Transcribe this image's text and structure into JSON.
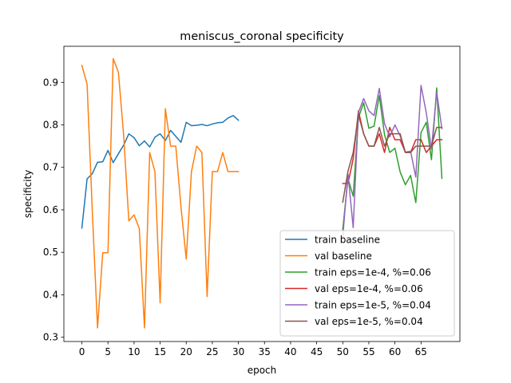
{
  "chart_data": {
    "type": "line",
    "title": "meniscus_coronal specificity",
    "xlabel": "epoch",
    "ylabel": "specificity",
    "xlim": [
      -3.45,
      72.45
    ],
    "ylim": [
      0.29,
      0.985
    ],
    "xticks": [
      0,
      5,
      10,
      15,
      20,
      25,
      30,
      35,
      40,
      45,
      50,
      55,
      60,
      65
    ],
    "yticks": [
      0.3,
      0.4,
      0.5,
      0.6,
      0.7,
      0.8,
      0.9
    ],
    "grid": false,
    "legend_position": "lower-right",
    "series": [
      {
        "name": "train baseline",
        "color": "#1f77b4",
        "x": [
          0,
          1,
          2,
          3,
          4,
          5,
          6,
          7,
          8,
          9,
          10,
          11,
          12,
          13,
          14,
          15,
          16,
          17,
          18,
          19,
          20,
          21,
          22,
          23,
          24,
          25,
          26,
          27,
          28,
          29,
          30
        ],
        "y": [
          0.557,
          0.673,
          0.685,
          0.712,
          0.713,
          0.74,
          0.711,
          0.732,
          0.752,
          0.779,
          0.77,
          0.751,
          0.762,
          0.748,
          0.771,
          0.779,
          0.763,
          0.787,
          0.773,
          0.759,
          0.806,
          0.798,
          0.799,
          0.801,
          0.798,
          0.802,
          0.805,
          0.806,
          0.816,
          0.822,
          0.811
        ]
      },
      {
        "name": "val baseline",
        "color": "#ff7f0e",
        "x": [
          0,
          1,
          2,
          3,
          4,
          5,
          6,
          7,
          8,
          9,
          10,
          11,
          12,
          13,
          14,
          15,
          16,
          17,
          18,
          19,
          20,
          21,
          22,
          23,
          24,
          25,
          26,
          27,
          28,
          29,
          30
        ],
        "y": [
          0.94,
          0.896,
          0.596,
          0.322,
          0.499,
          0.499,
          0.956,
          0.924,
          0.777,
          0.574,
          0.588,
          0.556,
          0.322,
          0.735,
          0.69,
          0.381,
          0.838,
          0.75,
          0.75,
          0.606,
          0.484,
          0.69,
          0.75,
          0.735,
          0.396,
          0.69,
          0.69,
          0.735,
          0.69,
          0.69,
          0.69
        ]
      },
      {
        "name": "train eps=1e-4, %=0.06",
        "color": "#2ca02c",
        "x": [
          50,
          51,
          52,
          53,
          54,
          55,
          56,
          57,
          58,
          59,
          60,
          61,
          62,
          63,
          64,
          65,
          66,
          67,
          68,
          69
        ],
        "y": [
          0.554,
          0.674,
          0.632,
          0.817,
          0.852,
          0.792,
          0.797,
          0.869,
          0.777,
          0.735,
          0.745,
          0.689,
          0.659,
          0.681,
          0.617,
          0.782,
          0.806,
          0.718,
          0.887,
          0.674
        ]
      },
      {
        "name": "val eps=1e-4, %=0.06",
        "color": "#d62728",
        "x": [
          50,
          51,
          52,
          53,
          54,
          55,
          56,
          57,
          58,
          59,
          60,
          61,
          62,
          63,
          64,
          65,
          66,
          67,
          68,
          69
        ],
        "y": [
          0.662,
          0.662,
          0.72,
          0.833,
          0.779,
          0.75,
          0.75,
          0.779,
          0.735,
          0.794,
          0.765,
          0.765,
          0.735,
          0.735,
          0.765,
          0.765,
          0.735,
          0.75,
          0.765,
          0.765
        ]
      },
      {
        "name": "train eps=1e-5, %=0.04",
        "color": "#9467bd",
        "x": [
          50,
          51,
          52,
          53,
          54,
          55,
          56,
          57,
          58,
          59,
          60,
          61,
          62,
          63,
          64,
          65,
          66,
          67,
          68,
          69
        ],
        "y": [
          0.536,
          0.685,
          0.558,
          0.829,
          0.862,
          0.833,
          0.822,
          0.886,
          0.803,
          0.772,
          0.8,
          0.774,
          0.736,
          0.738,
          0.677,
          0.893,
          0.829,
          0.743,
          0.877,
          0.791
        ]
      },
      {
        "name": "val eps=1e-5, %=0.04",
        "color": "#8c564b",
        "x": [
          50,
          51,
          52,
          53,
          54,
          55,
          56,
          57,
          58,
          59,
          60,
          61,
          62,
          63,
          64,
          65,
          66,
          67,
          68,
          69
        ],
        "y": [
          0.618,
          0.691,
          0.735,
          0.824,
          0.779,
          0.75,
          0.75,
          0.794,
          0.75,
          0.779,
          0.779,
          0.779,
          0.735,
          0.735,
          0.75,
          0.75,
          0.75,
          0.75,
          0.794,
          0.794
        ]
      }
    ]
  }
}
